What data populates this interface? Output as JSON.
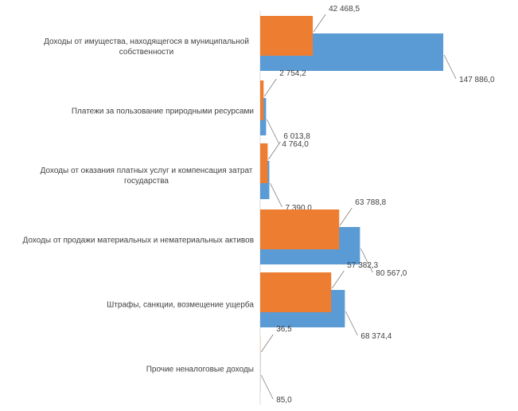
{
  "chart_data": {
    "type": "bar",
    "orientation": "horizontal",
    "categories": [
      [
        "Доходы от имущества, находящегося в муниципальной",
        "собственности"
      ],
      [
        "Платежи за пользование природными ресурсами"
      ],
      [
        "Доходы от оказания платных услуг и компенсация затрат",
        "государства"
      ],
      [
        "Доходы от продажи материальных и нематериальных активов"
      ],
      [
        "Штрафы, санкции, возмещение ущерба"
      ],
      [
        "Прочие неналоговые доходы"
      ]
    ],
    "series": [
      {
        "color": "#5b9bd5",
        "values": [
          147886.0,
          4764.0,
          7390.0,
          80567.0,
          68374.4,
          85.0
        ],
        "labels": [
          "147 886,0",
          "4 764,0",
          "7 390,0",
          "80 567,0",
          "68 374,4",
          "85,0"
        ]
      },
      {
        "color": "#ed7d31",
        "values": [
          42468.5,
          2754.2,
          6013.8,
          63788.8,
          57382.3,
          36.5
        ],
        "labels": [
          "42 468,5",
          "2 754,2",
          "6 013,8",
          "63 788,8",
          "57 382,3",
          "36,5"
        ]
      }
    ],
    "xlim": [
      0,
      160000
    ],
    "grid": false,
    "legend": "none"
  }
}
